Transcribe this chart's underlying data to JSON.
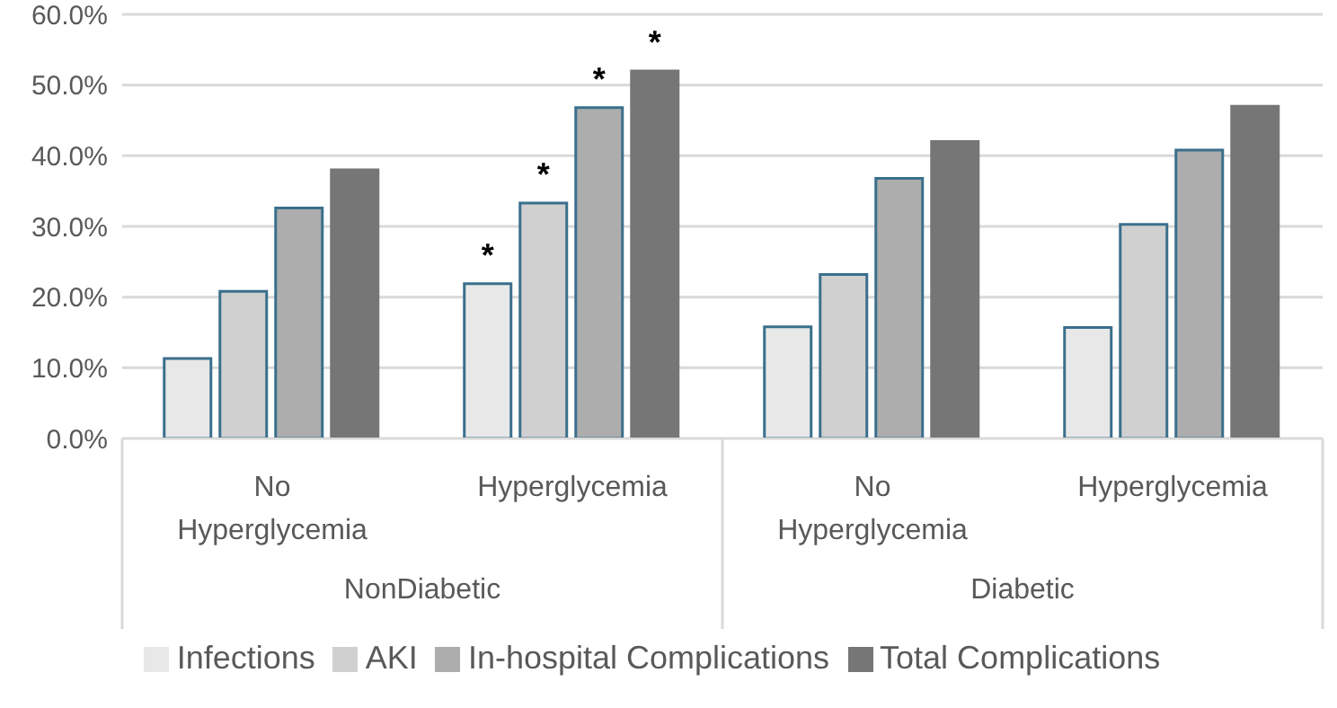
{
  "chart_data": {
    "type": "bar",
    "categories": [
      "No Hyperglycemia",
      "Hyperglycemia",
      "No Hyperglycemia",
      "Hyperglycemia"
    ],
    "annotations": [
      "NonDiabetic",
      "Diabetic"
    ],
    "series": [
      {
        "name": "Infections",
        "color": "#e8e8e8",
        "values": [
          11.3,
          21.9,
          15.8,
          15.7
        ],
        "value_labels": [
          null,
          "*",
          null,
          null
        ]
      },
      {
        "name": "AKI",
        "color": "#d0d0d0",
        "values": [
          20.8,
          33.3,
          23.2,
          30.3
        ],
        "value_labels": [
          null,
          "*",
          null,
          null
        ]
      },
      {
        "name": "In-hospital Complications",
        "color": "#adadad",
        "values": [
          32.6,
          46.8,
          36.8,
          40.8
        ],
        "value_labels": [
          null,
          "*",
          null,
          null
        ]
      },
      {
        "name": "Total Complications",
        "color": "#767676",
        "values": [
          38.0,
          52.0,
          42.0,
          47.0
        ],
        "value_labels": [
          null,
          "*",
          null,
          null
        ]
      }
    ],
    "ylim": [
      0,
      60
    ],
    "yticks": [
      {
        "value": 0,
        "label": "0.0%"
      },
      {
        "value": 10,
        "label": "10.0%"
      },
      {
        "value": 20,
        "label": "20.0%"
      },
      {
        "value": 30,
        "label": "30.0%"
      },
      {
        "value": 40,
        "label": "40.0%"
      },
      {
        "value": 50,
        "label": "50.0%"
      },
      {
        "value": 60,
        "label": "60.0%"
      }
    ],
    "grid": "y",
    "legend": "bottom"
  }
}
